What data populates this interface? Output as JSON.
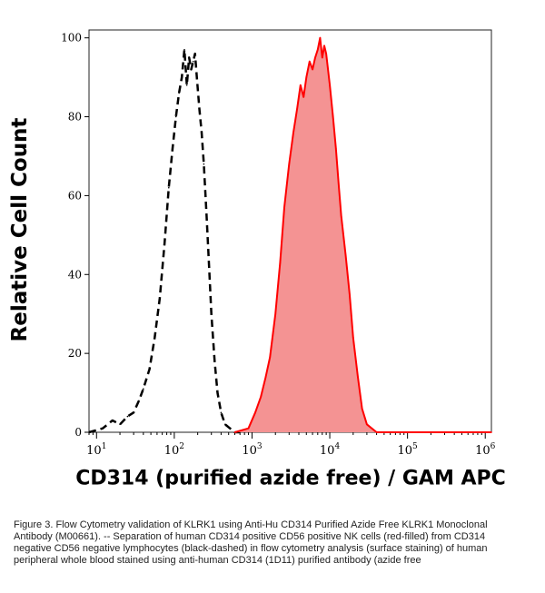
{
  "chart_data": {
    "type": "area",
    "title": "",
    "xlabel": "CD314 (purified azide free) / GAM APC",
    "ylabel": "Relative Cell Count",
    "xscale": "log",
    "xlim": [
      8,
      1200000
    ],
    "ylim": [
      0,
      102
    ],
    "yticks": [
      "0",
      "20",
      "40",
      "60",
      "80",
      "100"
    ],
    "xticks": [
      {
        "base": "10",
        "exp": "1"
      },
      {
        "base": "10",
        "exp": "2"
      },
      {
        "base": "10",
        "exp": "3"
      },
      {
        "base": "10",
        "exp": "4"
      },
      {
        "base": "10",
        "exp": "5"
      },
      {
        "base": "10",
        "exp": "6"
      }
    ],
    "grid": false,
    "series": [
      {
        "style": "black-dashed",
        "color": "#000000",
        "x": [
          8,
          12,
          16,
          20,
          25,
          30,
          35,
          40,
          48,
          56,
          65,
          75,
          85,
          95,
          105,
          115,
          125,
          135,
          145,
          155,
          165,
          175,
          185,
          195,
          210,
          225,
          240,
          260,
          280,
          300,
          330,
          360,
          400,
          450,
          520,
          600,
          700
        ],
        "y": [
          0,
          1,
          3,
          2,
          4,
          5,
          8,
          11,
          16,
          24,
          34,
          48,
          62,
          72,
          80,
          86,
          90,
          97,
          88,
          95,
          92,
          94,
          96,
          90,
          82,
          76,
          68,
          55,
          42,
          30,
          18,
          10,
          5,
          2,
          1,
          0,
          0
        ]
      },
      {
        "style": "red-filled",
        "color": "#ff0000",
        "fill": "#f49393",
        "x": [
          600,
          900,
          1100,
          1300,
          1500,
          1700,
          2000,
          2300,
          2600,
          3000,
          3400,
          3800,
          4200,
          4600,
          5000,
          5500,
          6000,
          6500,
          7000,
          7500,
          8000,
          8500,
          9000,
          9500,
          10000,
          11000,
          12000,
          13000,
          14000,
          16000,
          18000,
          20000,
          23000,
          26000,
          30000,
          40000,
          60000,
          100000,
          1200000
        ],
        "y": [
          0,
          1,
          5,
          9,
          14,
          19,
          30,
          43,
          57,
          68,
          76,
          82,
          88,
          85,
          90,
          94,
          92,
          95,
          97,
          100,
          95,
          98,
          96,
          92,
          88,
          80,
          72,
          63,
          55,
          45,
          35,
          24,
          14,
          6,
          2,
          0,
          0,
          0,
          0
        ]
      }
    ]
  },
  "caption": "Figure 3. Flow Cytometry validation of KLRK1 using Anti-Hu CD314 Purified Azide Free KLRK1 Monoclonal Antibody (M00661). -- Separation of human CD314 positive CD56 positive NK cells (red-filled) from CD314 negative CD56 negative lymphocytes (black-dashed) in flow cytometry analysis (surface staining) of human peripheral whole blood stained using anti-human CD314 (1D11) purified antibody (azide free"
}
